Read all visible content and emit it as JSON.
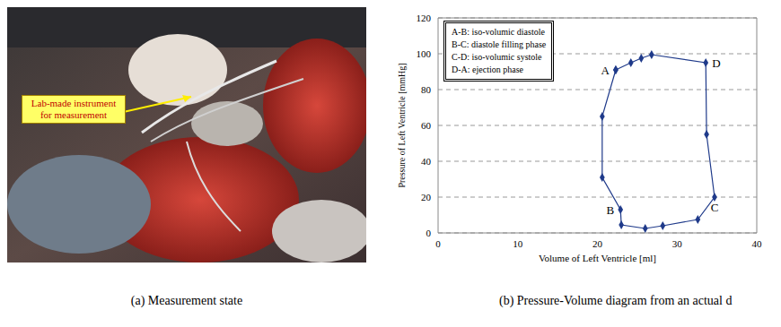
{
  "photo": {
    "callout": "Lab-made instrument for measurement",
    "caption": "(a) Measurement state"
  },
  "chart_data": {
    "type": "scatter",
    "caption": "(b) Pressure-Volume diagram from an actual d",
    "x_label": "Volume of Left Ventricle [ml]",
    "y_label": "Pressure of Left Ventricle [mmHg]",
    "x": [
      22.3,
      20.6,
      20.6,
      22.9,
      23.0,
      26.0,
      28.2,
      32.6,
      34.7,
      33.7,
      33.6,
      26.8,
      25.5,
      24.2
    ],
    "values": [
      91,
      65,
      31,
      13,
      4.5,
      2.5,
      4,
      7.5,
      20,
      55,
      95,
      99.5,
      97.5,
      95
    ],
    "color": "#1f3a8a",
    "marker": "diamond",
    "line_style": "solid",
    "xlim": [
      0,
      40
    ],
    "xticks": [
      0,
      10,
      20,
      30,
      40
    ],
    "ylim": [
      0,
      120
    ],
    "yticks": [
      0,
      20,
      40,
      60,
      80,
      100,
      120
    ],
    "grid": true,
    "legend_box": [
      "A-B: iso-volumic diastole",
      "B-C: diastole filling phase",
      "C-D: iso-volumic systole",
      "D-A: ejection phase"
    ],
    "annotations": [
      {
        "text": "A",
        "x": 22.3,
        "y": 91
      },
      {
        "text": "B",
        "x": 22.9,
        "y": 13
      },
      {
        "text": "C",
        "x": 34.7,
        "y": 20
      },
      {
        "text": "D",
        "x": 33.6,
        "y": 95
      }
    ]
  }
}
